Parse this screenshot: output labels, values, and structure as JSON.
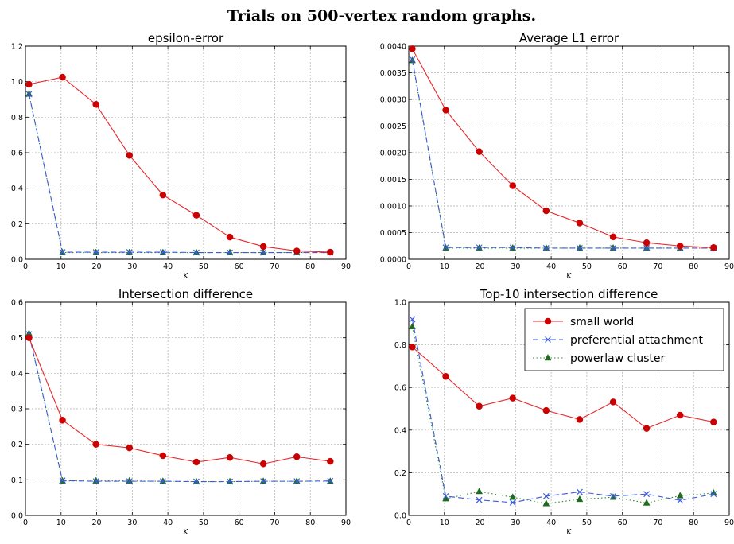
{
  "figure_title": "Trials on 500-vertex random graphs.",
  "colors": {
    "small_world": "#e8262a",
    "small_world_marker": "#cc0000",
    "preferential_attachment": "#3b5bdb",
    "powerlaw_cluster": "#1e6b1e",
    "powerlaw_line": "#2e8b2e"
  },
  "legend": {
    "placement": "top-right of Top-10 intersection difference panel",
    "entries": [
      "small world",
      "preferential attachment",
      "powerlaw cluster"
    ]
  },
  "chart_data": [
    {
      "type": "line",
      "title": "epsilon-error",
      "xlabel": "K",
      "ylabel": "",
      "xlim": [
        0,
        90
      ],
      "ylim": [
        0,
        1.2
      ],
      "xticks": [
        "0",
        "10",
        "20",
        "30",
        "40",
        "50",
        "60",
        "70",
        "80",
        "90"
      ],
      "yticks": [
        "0.0",
        "0.2",
        "0.4",
        "0.6",
        "0.8",
        "1.0",
        "1.2"
      ],
      "grid": true,
      "x": [
        1,
        10.4,
        19.8,
        29.2,
        38.6,
        48,
        57.4,
        66.8,
        76.2,
        85.6
      ],
      "series": [
        {
          "name": "small world",
          "values": [
            0.985,
            1.025,
            0.872,
            0.585,
            0.362,
            0.248,
            0.125,
            0.072,
            0.047,
            0.04
          ]
        },
        {
          "name": "preferential attachment",
          "values": [
            0.93,
            0.04,
            0.04,
            0.04,
            0.04,
            0.038,
            0.038,
            0.038,
            0.038,
            0.038
          ]
        },
        {
          "name": "powerlaw cluster",
          "values": [
            0.93,
            0.038,
            0.038,
            0.038,
            0.038,
            0.038,
            0.038,
            0.038,
            0.038,
            0.038
          ]
        }
      ]
    },
    {
      "type": "line",
      "title": "Average L1 error",
      "xlabel": "K",
      "ylabel": "",
      "xlim": [
        0,
        90
      ],
      "ylim": [
        0,
        0.004
      ],
      "xticks": [
        "0",
        "10",
        "20",
        "30",
        "40",
        "50",
        "60",
        "70",
        "80",
        "90"
      ],
      "yticks": [
        "0.0000",
        "0.0005",
        "0.0010",
        "0.0015",
        "0.0020",
        "0.0025",
        "0.0030",
        "0.0035",
        "0.0040"
      ],
      "grid": true,
      "x": [
        1,
        10.4,
        19.8,
        29.2,
        38.6,
        48,
        57.4,
        66.8,
        76.2,
        85.6
      ],
      "series": [
        {
          "name": "small world",
          "values": [
            0.00395,
            0.0028,
            0.00202,
            0.00138,
            0.00091,
            0.00068,
            0.00042,
            0.00031,
            0.00025,
            0.00022
          ]
        },
        {
          "name": "preferential attachment",
          "values": [
            0.00375,
            0.00022,
            0.00022,
            0.00022,
            0.00021,
            0.00021,
            0.00021,
            0.00021,
            0.00021,
            0.00021
          ]
        },
        {
          "name": "powerlaw cluster",
          "values": [
            0.00373,
            0.00021,
            0.00021,
            0.00021,
            0.00021,
            0.00021,
            0.00021,
            0.00021,
            0.00021,
            0.00021
          ]
        }
      ]
    },
    {
      "type": "line",
      "title": "Intersection difference",
      "xlabel": "K",
      "ylabel": "",
      "xlim": [
        0,
        90
      ],
      "ylim": [
        0,
        0.6
      ],
      "xticks": [
        "0",
        "10",
        "20",
        "30",
        "40",
        "50",
        "60",
        "70",
        "80",
        "90"
      ],
      "yticks": [
        "0.0",
        "0.1",
        "0.2",
        "0.3",
        "0.4",
        "0.5",
        "0.6"
      ],
      "grid": true,
      "x": [
        1,
        10.4,
        19.8,
        29.2,
        38.6,
        48,
        57.4,
        66.8,
        76.2,
        85.6
      ],
      "series": [
        {
          "name": "small world",
          "values": [
            0.5,
            0.268,
            0.2,
            0.19,
            0.168,
            0.15,
            0.163,
            0.145,
            0.165,
            0.152
          ]
        },
        {
          "name": "preferential attachment",
          "values": [
            0.51,
            0.098,
            0.096,
            0.096,
            0.096,
            0.095,
            0.095,
            0.096,
            0.096,
            0.097
          ]
        },
        {
          "name": "powerlaw cluster",
          "values": [
            0.512,
            0.097,
            0.097,
            0.097,
            0.096,
            0.095,
            0.095,
            0.096,
            0.096,
            0.096
          ]
        }
      ]
    },
    {
      "type": "line",
      "title": "Top-10 intersection difference",
      "xlabel": "K",
      "ylabel": "",
      "xlim": [
        0,
        90
      ],
      "ylim": [
        0,
        1.0
      ],
      "xticks": [
        "0",
        "10",
        "20",
        "30",
        "40",
        "50",
        "60",
        "70",
        "80",
        "90"
      ],
      "yticks": [
        "0.0",
        "0.2",
        "0.4",
        "0.6",
        "0.8",
        "1.0"
      ],
      "grid": true,
      "legend": true,
      "x": [
        1,
        10.4,
        19.8,
        29.2,
        38.6,
        48,
        57.4,
        66.8,
        76.2,
        85.6
      ],
      "series": [
        {
          "name": "small world",
          "values": [
            0.79,
            0.652,
            0.512,
            0.55,
            0.492,
            0.45,
            0.532,
            0.408,
            0.47,
            0.438
          ]
        },
        {
          "name": "preferential attachment",
          "values": [
            0.92,
            0.09,
            0.072,
            0.06,
            0.09,
            0.11,
            0.09,
            0.1,
            0.07,
            0.1
          ]
        },
        {
          "name": "powerlaw cluster",
          "values": [
            0.885,
            0.078,
            0.112,
            0.085,
            0.055,
            0.075,
            0.085,
            0.058,
            0.092,
            0.105
          ]
        }
      ]
    }
  ]
}
